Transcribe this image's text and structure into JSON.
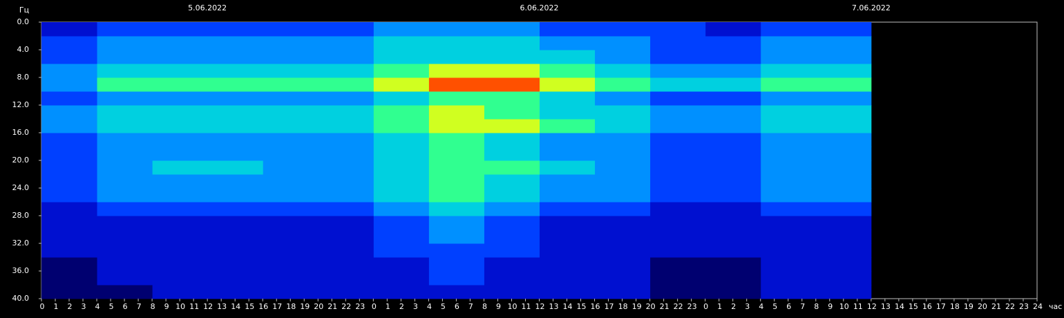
{
  "chart_data": {
    "type": "heatmap",
    "y_label": "Гц",
    "x_label": "час",
    "dates": [
      {
        "x": 12,
        "label": "5.06.2022"
      },
      {
        "x": 36,
        "label": "6.06.2022"
      },
      {
        "x": 60,
        "label": "7.06.2022"
      }
    ],
    "xlim": [
      0,
      72
    ],
    "ylim": [
      0,
      40
    ],
    "y_inverted": true,
    "yticks": [
      {
        "value": 0,
        "label": "0.0"
      },
      {
        "value": 4,
        "label": "4.0"
      },
      {
        "value": 8,
        "label": "8.0"
      },
      {
        "value": 12,
        "label": "12.0"
      },
      {
        "value": 16,
        "label": "16.0"
      },
      {
        "value": 20,
        "label": "20.0"
      },
      {
        "value": 24,
        "label": "24.0"
      },
      {
        "value": 28,
        "label": "28.0"
      },
      {
        "value": 32,
        "label": "32.0"
      },
      {
        "value": 36,
        "label": "36.0"
      },
      {
        "value": 40,
        "label": "40.0"
      }
    ],
    "xticks": [
      0,
      1,
      2,
      3,
      4,
      5,
      6,
      7,
      8,
      9,
      10,
      11,
      12,
      13,
      14,
      15,
      16,
      17,
      18,
      19,
      20,
      21,
      22,
      23,
      {
        "value": 24,
        "label": "0"
      },
      {
        "value": 25,
        "label": "1"
      },
      {
        "value": 26,
        "label": "2"
      },
      {
        "value": 27,
        "label": "3"
      },
      {
        "value": 28,
        "label": "4"
      },
      {
        "value": 29,
        "label": "5"
      },
      {
        "value": 30,
        "label": "6"
      },
      {
        "value": 31,
        "label": "7"
      },
      {
        "value": 32,
        "label": "8"
      },
      {
        "value": 33,
        "label": "9"
      },
      {
        "value": 34,
        "label": "10"
      },
      {
        "value": 35,
        "label": "11"
      },
      {
        "value": 36,
        "label": "12"
      },
      {
        "value": 37,
        "label": "13"
      },
      {
        "value": 38,
        "label": "14"
      },
      {
        "value": 39,
        "label": "15"
      },
      {
        "value": 40,
        "label": "16"
      },
      {
        "value": 41,
        "label": "17"
      },
      {
        "value": 42,
        "label": "18"
      },
      {
        "value": 43,
        "label": "19"
      },
      {
        "value": 44,
        "label": "20"
      },
      {
        "value": 45,
        "label": "21"
      },
      {
        "value": 46,
        "label": "22"
      },
      {
        "value": 47,
        "label": "23"
      },
      {
        "value": 48,
        "label": "0"
      },
      {
        "value": 49,
        "label": "1"
      },
      {
        "value": 50,
        "label": "2"
      },
      {
        "value": 51,
        "label": "3"
      },
      {
        "value": 52,
        "label": "4"
      },
      {
        "value": 53,
        "label": "5"
      },
      {
        "value": 54,
        "label": "6"
      },
      {
        "value": 55,
        "label": "7"
      },
      {
        "value": 56,
        "label": "8"
      },
      {
        "value": 57,
        "label": "9"
      },
      {
        "value": 58,
        "label": "10"
      },
      {
        "value": 59,
        "label": "11"
      },
      {
        "value": 60,
        "label": "12"
      },
      {
        "value": 61,
        "label": "13"
      },
      {
        "value": 62,
        "label": "14"
      },
      {
        "value": 63,
        "label": "15"
      },
      {
        "value": 64,
        "label": "16"
      },
      {
        "value": 65,
        "label": "17"
      },
      {
        "value": 66,
        "label": "18"
      },
      {
        "value": 67,
        "label": "19"
      },
      {
        "value": 68,
        "label": "20"
      },
      {
        "value": 69,
        "label": "21"
      },
      {
        "value": 70,
        "label": "22"
      },
      {
        "value": 71,
        "label": "23"
      },
      {
        "value": 72,
        "label": "24"
      }
    ],
    "x_bins": [
      0,
      4,
      8,
      12,
      16,
      20,
      24,
      28,
      32,
      36,
      40,
      44,
      48,
      52,
      56,
      60
    ],
    "y_bins": [
      0,
      2,
      4,
      6,
      8,
      10,
      12,
      14,
      16,
      18,
      20,
      22,
      24,
      26,
      28,
      30,
      32,
      34,
      36,
      38,
      40
    ],
    "colors": [
      "#000070",
      "#0010d0",
      "#0040ff",
      "#0090ff",
      "#00d0e0",
      "#30ff90",
      "#d0ff20",
      "#ff5000"
    ],
    "z": [
      [
        1,
        2,
        2,
        2,
        2,
        2,
        3,
        3,
        3,
        2,
        2,
        2,
        1,
        2,
        2
      ],
      [
        2,
        3,
        3,
        3,
        3,
        3,
        4,
        4,
        4,
        3,
        3,
        2,
        2,
        3,
        3
      ],
      [
        2,
        3,
        3,
        3,
        3,
        3,
        4,
        4,
        4,
        4,
        3,
        2,
        2,
        3,
        3
      ],
      [
        3,
        4,
        4,
        4,
        4,
        4,
        5,
        6,
        6,
        5,
        4,
        3,
        3,
        4,
        4
      ],
      [
        3,
        5,
        5,
        5,
        5,
        5,
        6,
        7,
        7,
        6,
        5,
        4,
        4,
        5,
        5
      ],
      [
        2,
        3,
        3,
        3,
        3,
        3,
        4,
        5,
        5,
        4,
        3,
        2,
        2,
        3,
        3
      ],
      [
        3,
        4,
        4,
        4,
        4,
        4,
        5,
        6,
        5,
        4,
        4,
        3,
        3,
        4,
        4
      ],
      [
        3,
        4,
        4,
        4,
        4,
        4,
        5,
        6,
        6,
        5,
        4,
        3,
        3,
        4,
        4
      ],
      [
        2,
        3,
        3,
        3,
        3,
        3,
        4,
        5,
        4,
        3,
        3,
        2,
        2,
        3,
        3
      ],
      [
        2,
        3,
        3,
        3,
        3,
        3,
        4,
        5,
        4,
        3,
        3,
        2,
        2,
        3,
        3
      ],
      [
        2,
        3,
        4,
        4,
        3,
        3,
        4,
        5,
        5,
        4,
        3,
        2,
        2,
        3,
        3
      ],
      [
        2,
        3,
        3,
        3,
        3,
        3,
        4,
        5,
        4,
        3,
        3,
        2,
        2,
        3,
        3
      ],
      [
        2,
        3,
        3,
        3,
        3,
        3,
        4,
        5,
        4,
        3,
        3,
        2,
        2,
        3,
        3
      ],
      [
        1,
        2,
        2,
        2,
        2,
        2,
        3,
        4,
        3,
        2,
        2,
        1,
        1,
        2,
        2
      ],
      [
        1,
        1,
        1,
        1,
        1,
        1,
        2,
        3,
        2,
        1,
        1,
        1,
        1,
        1,
        1
      ],
      [
        1,
        1,
        1,
        1,
        1,
        1,
        2,
        3,
        2,
        1,
        1,
        1,
        1,
        1,
        1
      ],
      [
        1,
        1,
        1,
        1,
        1,
        1,
        2,
        2,
        2,
        1,
        1,
        1,
        1,
        1,
        1
      ],
      [
        0,
        1,
        1,
        1,
        1,
        1,
        1,
        2,
        1,
        1,
        1,
        0,
        0,
        1,
        1
      ],
      [
        0,
        1,
        1,
        1,
        1,
        1,
        1,
        2,
        1,
        1,
        1,
        0,
        0,
        1,
        1
      ],
      [
        0,
        0,
        1,
        1,
        1,
        1,
        1,
        1,
        1,
        1,
        1,
        0,
        0,
        1,
        1
      ]
    ]
  }
}
